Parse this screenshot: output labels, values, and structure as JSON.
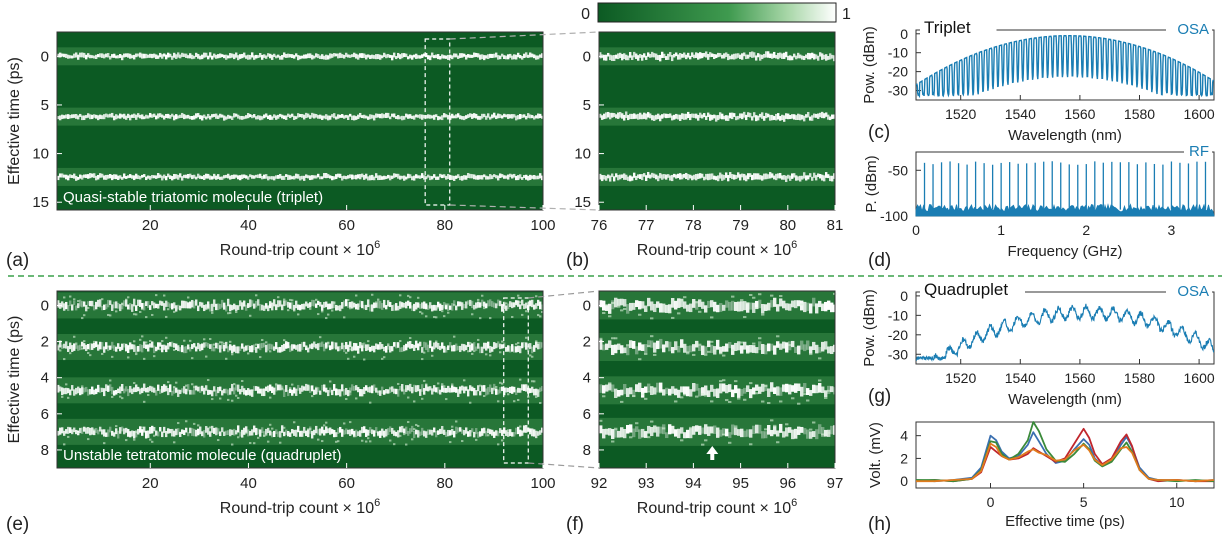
{
  "colors": {
    "heat_low": "#0c5a23",
    "heat_high": "#ffffff",
    "spectrum": "#1a7db3",
    "separator": "#3aa04a",
    "trace_blue": "#3a6fb0",
    "trace_red": "#c0262c",
    "trace_green": "#3a8a3a",
    "trace_orange": "#e07b1d"
  },
  "colorbar": {
    "min_label": "0",
    "max_label": "1"
  },
  "panel_labels": {
    "a": "(a)",
    "b": "(b)",
    "c": "(c)",
    "d": "(d)",
    "e": "(e)",
    "f": "(f)",
    "g": "(g)",
    "h": "(h)"
  },
  "chart_data": [
    {
      "id": "a",
      "type": "heatmap",
      "xlabel": "Round-trip count × 10",
      "xlabel_sup": "6",
      "ylabel": "Effective time (ps)",
      "xlim": [
        1,
        100
      ],
      "ylim": [
        -2.5,
        15.8
      ],
      "y_reversed": true,
      "xticks": [
        20,
        40,
        60,
        80,
        100
      ],
      "yticks": [
        0,
        5,
        10,
        15
      ],
      "annotation": "Quasi-stable triatomic molecule (triplet)",
      "bands_ps": [
        0,
        6.2,
        12.4
      ],
      "zoom_box_x": [
        76,
        81
      ]
    },
    {
      "id": "b",
      "type": "heatmap",
      "xlabel": "Round-trip count × 10",
      "xlabel_sup": "6",
      "xlim": [
        76,
        81
      ],
      "ylim": [
        -2.5,
        15.8
      ],
      "y_reversed": true,
      "xticks": [
        76,
        77,
        78,
        79,
        80,
        81
      ],
      "yticks": [
        0,
        5,
        10,
        15
      ],
      "bands_ps": [
        0,
        6.2,
        12.4
      ]
    },
    {
      "id": "c",
      "type": "line",
      "title": "Triplet",
      "legend": "OSA",
      "xlabel": "Wavelength (nm)",
      "ylabel": "Pow. (dBm)",
      "xlim": [
        1505,
        1605
      ],
      "ylim": [
        -35,
        2
      ],
      "xticks": [
        1520,
        1540,
        1560,
        1580,
        1600
      ],
      "yticks": [
        0,
        -10,
        -20,
        -30
      ],
      "envelope": {
        "center_nm": 1556,
        "peak_dbm": -1,
        "floor_dbm": -33
      },
      "comb_fringes": 60
    },
    {
      "id": "d",
      "type": "line",
      "legend": "RF",
      "xlabel": "Frequency (GHz)",
      "ylabel": "P. (dBm)",
      "xlim": [
        0,
        3.5
      ],
      "ylim": [
        -100,
        -30
      ],
      "xticks": [
        0,
        1,
        2,
        3
      ],
      "yticks": [
        -50,
        -100
      ],
      "rep_rate_ghz": 0.1,
      "line_peak_dbm": -42,
      "noise_floor_dbm": -93
    },
    {
      "id": "e",
      "type": "heatmap",
      "xlabel": "Round-trip count × 10",
      "xlabel_sup": "6",
      "ylabel": "Effective time (ps)",
      "xlim": [
        1,
        100
      ],
      "ylim": [
        -0.8,
        9.0
      ],
      "y_reversed": true,
      "xticks": [
        20,
        40,
        60,
        80,
        100
      ],
      "yticks": [
        0,
        2,
        4,
        6,
        8
      ],
      "annotation": "Unstable tetratomic molecule (quadruplet)",
      "bands_ps": [
        0,
        2.3,
        4.7,
        7.0
      ],
      "zoom_box_x": [
        92,
        97
      ]
    },
    {
      "id": "f",
      "type": "heatmap",
      "xlabel": "Round-trip count × 10",
      "xlabel_sup": "6",
      "xlim": [
        92,
        97
      ],
      "ylim": [
        -0.8,
        9.0
      ],
      "y_reversed": true,
      "xticks": [
        92,
        93,
        94,
        95,
        96,
        97
      ],
      "yticks": [
        0,
        2,
        4,
        6,
        8
      ],
      "bands_ps": [
        0,
        2.3,
        4.7,
        7.0
      ],
      "arrow_x": 94.4
    },
    {
      "id": "g",
      "type": "line",
      "title": "Quadruplet",
      "legend": "OSA",
      "xlabel": "Wavelength (nm)",
      "ylabel": "Pow. (dBm)",
      "xlim": [
        1505,
        1605
      ],
      "ylim": [
        -35,
        2
      ],
      "xticks": [
        1520,
        1540,
        1560,
        1580,
        1600
      ],
      "yticks": [
        0,
        -10,
        -20,
        -30
      ],
      "envelope": {
        "center_nm": 1562,
        "peak_dbm": -1,
        "floor_dbm": -33
      },
      "fringe_period_nm": 4.6
    },
    {
      "id": "h",
      "type": "line",
      "xlabel": "Effective time (ps)",
      "ylabel": "Volt. (mV)",
      "xlim": [
        -4,
        12
      ],
      "ylim": [
        -0.6,
        5.2
      ],
      "xticks": [
        0,
        5,
        10
      ],
      "yticks": [
        0,
        2,
        4
      ],
      "x": [
        -4,
        -3,
        -2,
        -1,
        -0.5,
        0,
        0.3,
        0.6,
        1,
        1.5,
        2,
        2.3,
        2.6,
        3,
        3.5,
        4,
        4.5,
        5,
        5.3,
        5.6,
        6,
        6.5,
        7,
        7.3,
        7.6,
        8,
        8.5,
        9,
        10,
        11,
        12
      ],
      "series": [
        {
          "color": "#3a6fb0",
          "values": [
            0.1,
            0,
            0.1,
            0.3,
            1.2,
            4.0,
            3.6,
            2.6,
            2.0,
            2.2,
            3.2,
            4.3,
            3.5,
            2.4,
            1.6,
            1.8,
            2.8,
            3.7,
            3.2,
            2.0,
            1.4,
            1.8,
            3.2,
            3.9,
            3.0,
            1.2,
            0.3,
            0.1,
            0.1,
            0,
            0.1
          ]
        },
        {
          "color": "#c0262c",
          "values": [
            0,
            0.1,
            0,
            0.2,
            0.8,
            3.0,
            2.6,
            2.2,
            1.9,
            2.0,
            2.4,
            2.9,
            2.6,
            2.2,
            1.7,
            2.0,
            3.3,
            4.6,
            3.8,
            2.4,
            1.5,
            2.0,
            3.5,
            4.1,
            3.1,
            1.0,
            0.2,
            0,
            0.1,
            0,
            0
          ]
        },
        {
          "color": "#3a8a3a",
          "values": [
            0.1,
            0.1,
            0,
            0.2,
            1.0,
            3.5,
            3.4,
            2.4,
            1.9,
            2.4,
            3.6,
            5.2,
            4.4,
            2.8,
            1.8,
            1.7,
            2.4,
            3.3,
            2.8,
            1.8,
            1.3,
            1.7,
            2.8,
            3.4,
            2.6,
            1.0,
            0.2,
            0.1,
            0,
            0.1,
            0
          ]
        },
        {
          "color": "#e07b1d",
          "values": [
            0,
            0,
            0.1,
            0.2,
            0.9,
            3.3,
            3.0,
            2.2,
            1.9,
            2.1,
            2.6,
            2.8,
            2.5,
            2.3,
            1.8,
            1.9,
            2.7,
            3.2,
            2.7,
            1.9,
            1.4,
            1.9,
            2.9,
            3.0,
            2.5,
            1.0,
            0.2,
            0.1,
            0.1,
            0,
            0.1
          ]
        }
      ]
    }
  ]
}
